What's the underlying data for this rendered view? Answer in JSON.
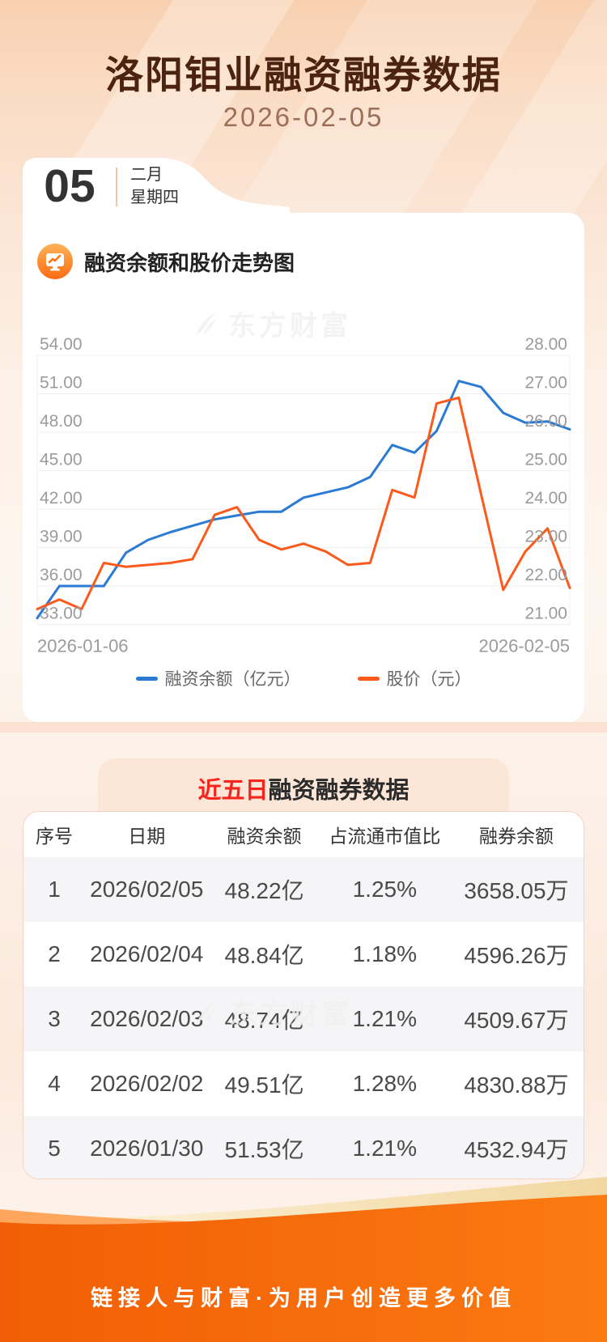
{
  "header": {
    "title": "洛阳钼业融资融券数据",
    "date": "2026-02-05"
  },
  "date_card": {
    "day": "05",
    "month": "二月",
    "weekday": "星期四"
  },
  "chart_section": {
    "title": "融资余额和股价走势图",
    "icon": "trend-monitor-icon",
    "watermark": "东方财富"
  },
  "table_section": {
    "watermark": "东方财富"
  },
  "chart_data": [
    {
      "type": "line",
      "title": "融资余额和股价走势图",
      "x_start": "2026-01-06",
      "x_end": "2026-02-05",
      "grid": true,
      "legend_position": "bottom",
      "left_axis": {
        "min": 33,
        "max": 54,
        "ticks": [
          "54.00",
          "51.00",
          "48.00",
          "45.00",
          "42.00",
          "39.00",
          "36.00",
          "33.00"
        ]
      },
      "right_axis": {
        "min": 21,
        "max": 28,
        "ticks": [
          "28.00",
          "27.00",
          "26.00",
          "25.00",
          "24.00",
          "23.00",
          "22.00",
          "21.00"
        ]
      },
      "series": [
        {
          "name": "融资余额（亿元）",
          "axis": "left",
          "color": "#2b7ad3",
          "values": [
            33.5,
            36.0,
            36.0,
            36.0,
            38.6,
            39.6,
            40.2,
            40.7,
            41.2,
            41.5,
            41.8,
            41.8,
            42.9,
            43.3,
            43.7,
            44.5,
            47.0,
            46.4,
            48.1,
            52.0,
            51.53,
            49.51,
            48.74,
            48.84,
            48.22
          ]
        },
        {
          "name": "股价（元）",
          "axis": "right",
          "color": "#fc5a1c",
          "values": [
            21.4,
            21.65,
            21.4,
            22.6,
            22.5,
            22.55,
            22.6,
            22.7,
            23.85,
            24.05,
            23.2,
            22.95,
            23.1,
            22.9,
            22.55,
            22.6,
            24.5,
            24.3,
            26.75,
            26.9,
            24.4,
            21.9,
            22.9,
            23.5,
            21.95
          ]
        }
      ]
    },
    {
      "type": "table",
      "title_highlight": "近五日",
      "title_rest": "融资融券数据",
      "columns": [
        "序号",
        "日期",
        "融资余额",
        "占流通市值比",
        "融券余额"
      ],
      "rows": [
        [
          "1",
          "2026/02/05",
          "48.22亿",
          "1.25%",
          "3658.05万"
        ],
        [
          "2",
          "2026/02/04",
          "48.84亿",
          "1.18%",
          "4596.26万"
        ],
        [
          "3",
          "2026/02/03",
          "48.74亿",
          "1.21%",
          "4509.67万"
        ],
        [
          "4",
          "2026/02/02",
          "49.51亿",
          "1.28%",
          "4830.88万"
        ],
        [
          "5",
          "2026/01/30",
          "51.53亿",
          "1.21%",
          "4532.94万"
        ]
      ]
    }
  ],
  "footer": {
    "slogan": "链接人与财富·为用户创造更多价值"
  },
  "colors": {
    "accent_orange": "#f4650a",
    "line_blue": "#2b7ad3",
    "line_orange": "#fc5a1c",
    "highlight_red": "#f5251d",
    "banner_peach": "#fce6d7"
  }
}
